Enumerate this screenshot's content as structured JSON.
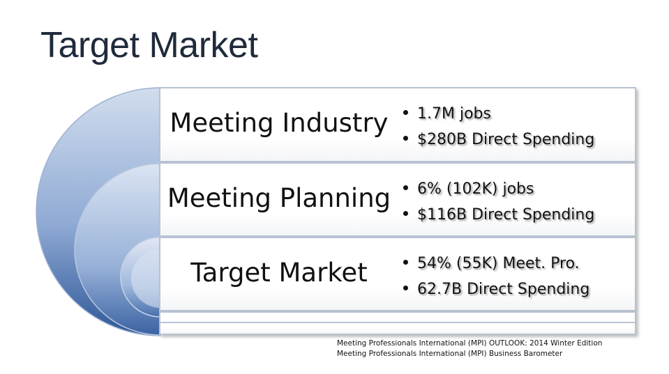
{
  "title": "Target Market",
  "tiers": [
    {
      "label": "Meeting Industry",
      "bullets": [
        "1.7M jobs",
        "$280B Direct Spending"
      ]
    },
    {
      "label": "Meeting Planning",
      "bullets": [
        "6% (102K) jobs",
        "$116B Direct Spending"
      ]
    },
    {
      "label": "Target Market",
      "bullets": [
        "54% (55K) Meet. Pro.",
        "62.7B Direct Spending"
      ]
    }
  ],
  "sources": [
    "Meeting Professionals International (MPI) OUTLOOK: 2014 Winter Edition",
    "Meeting Professionals International (MPI) Business Barometer"
  ],
  "colors": {
    "arc_fill_light": "#c5d4ea",
    "arc_fill_dark": "#3d64a6",
    "box_border": "#b8c3d2"
  }
}
